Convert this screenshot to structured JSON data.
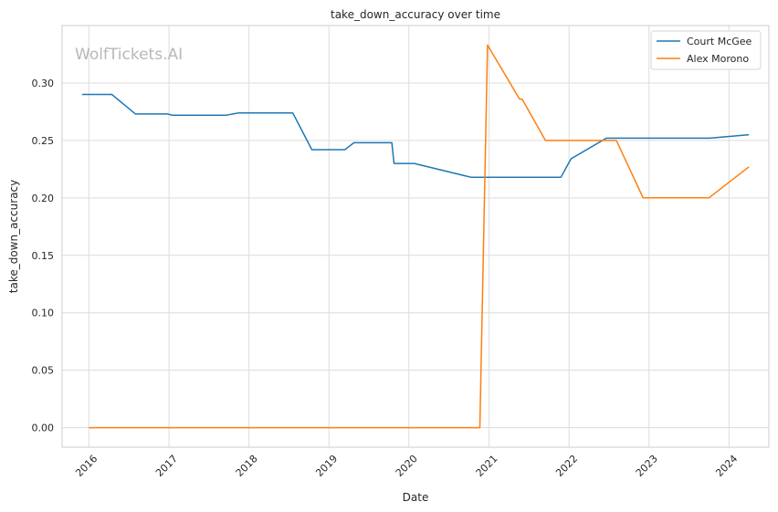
{
  "chart_data": {
    "type": "line",
    "title": "take_down_accuracy over time",
    "xlabel": "Date",
    "ylabel": "take_down_accuracy",
    "watermark": "WolfTickets.AI",
    "x_tick_labels": [
      "2016",
      "2017",
      "2018",
      "2019",
      "2020",
      "2021",
      "2022",
      "2023",
      "2024"
    ],
    "y_tick_labels": [
      "0.00",
      "0.05",
      "0.10",
      "0.15",
      "0.20",
      "0.25",
      "0.30"
    ],
    "ylim": [
      -0.017,
      0.35
    ],
    "xlim": [
      "2015-09-01",
      "2024-07-01"
    ],
    "grid": true,
    "legend_position": "top-right",
    "series": [
      {
        "name": "Court McGee",
        "color": "#1f77b4",
        "points": [
          [
            "2015-12-01",
            0.29
          ],
          [
            "2016-04-15",
            0.29
          ],
          [
            "2016-08-01",
            0.273
          ],
          [
            "2016-12-25",
            0.273
          ],
          [
            "2017-01-15",
            0.272
          ],
          [
            "2017-09-20",
            0.272
          ],
          [
            "2017-11-15",
            0.274
          ],
          [
            "2018-07-20",
            0.274
          ],
          [
            "2018-10-15",
            0.242
          ],
          [
            "2019-03-15",
            0.242
          ],
          [
            "2019-04-25",
            0.248
          ],
          [
            "2019-10-15",
            0.248
          ],
          [
            "2019-10-25",
            0.23
          ],
          [
            "2020-01-25",
            0.23
          ],
          [
            "2020-10-10",
            0.218
          ],
          [
            "2021-11-25",
            0.218
          ],
          [
            "2022-01-10",
            0.234
          ],
          [
            "2022-06-20",
            0.252
          ],
          [
            "2023-10-05",
            0.252
          ],
          [
            "2024-04-01",
            0.255
          ]
        ]
      },
      {
        "name": "Alex Morono",
        "color": "#ff7f0e",
        "points": [
          [
            "2016-01-01",
            0.0
          ],
          [
            "2020-11-20",
            0.0
          ],
          [
            "2020-12-25",
            0.333
          ],
          [
            "2021-05-20",
            0.286
          ],
          [
            "2021-06-01",
            0.286
          ],
          [
            "2021-09-15",
            0.25
          ],
          [
            "2022-08-05",
            0.25
          ],
          [
            "2022-12-05",
            0.2
          ],
          [
            "2023-10-01",
            0.2
          ],
          [
            "2024-04-01",
            0.227
          ]
        ]
      }
    ]
  }
}
